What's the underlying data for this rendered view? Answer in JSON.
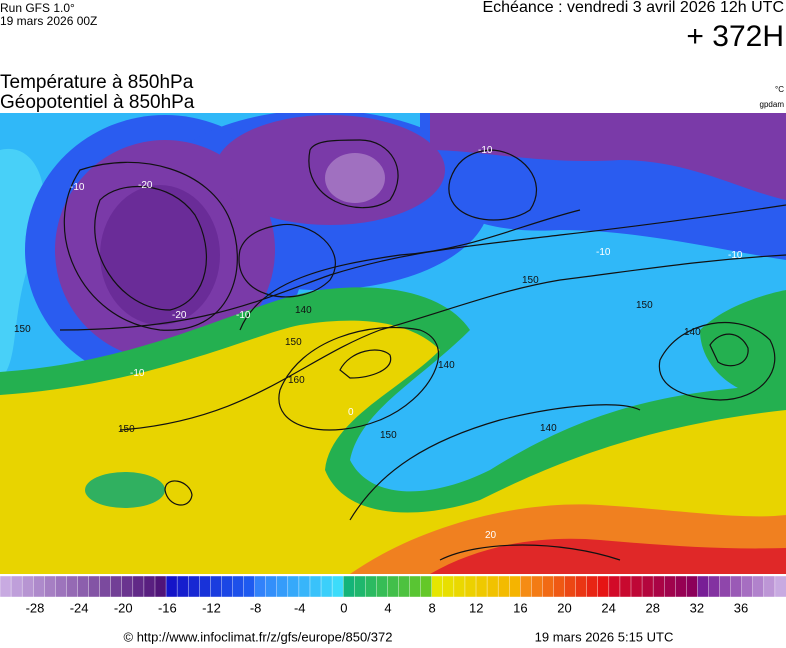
{
  "header": {
    "run": "Run GFS 1.0°",
    "run_date": "19 mars 2026 00Z",
    "valid": "Echéance : vendredi 3 avril 2026 12h UTC",
    "lead": "+ 372H"
  },
  "titles": {
    "line1": "Température à 850hPa",
    "line2": "Géopotentiel à 850hPa",
    "unit1": "°C",
    "unit2": "gpdam"
  },
  "map": {
    "contour_labels": [
      "150",
      "140",
      "160",
      "150",
      "140",
      "150",
      "150",
      "140",
      "150",
      "140",
      "150",
      "-10",
      "-20",
      "-20",
      "-10",
      "-10",
      "-10",
      "-10",
      "20",
      "0",
      "-10"
    ]
  },
  "colorbar": {
    "ticks": [
      -28,
      -24,
      -20,
      -16,
      -12,
      -8,
      -4,
      0,
      4,
      8,
      12,
      16,
      20,
      24,
      28,
      32,
      36
    ]
  },
  "footer": {
    "url": "© http://www.infoclimat.fr/z/gfs/europe/850/372",
    "date": "19 mars 2026  5:15 UTC"
  }
}
